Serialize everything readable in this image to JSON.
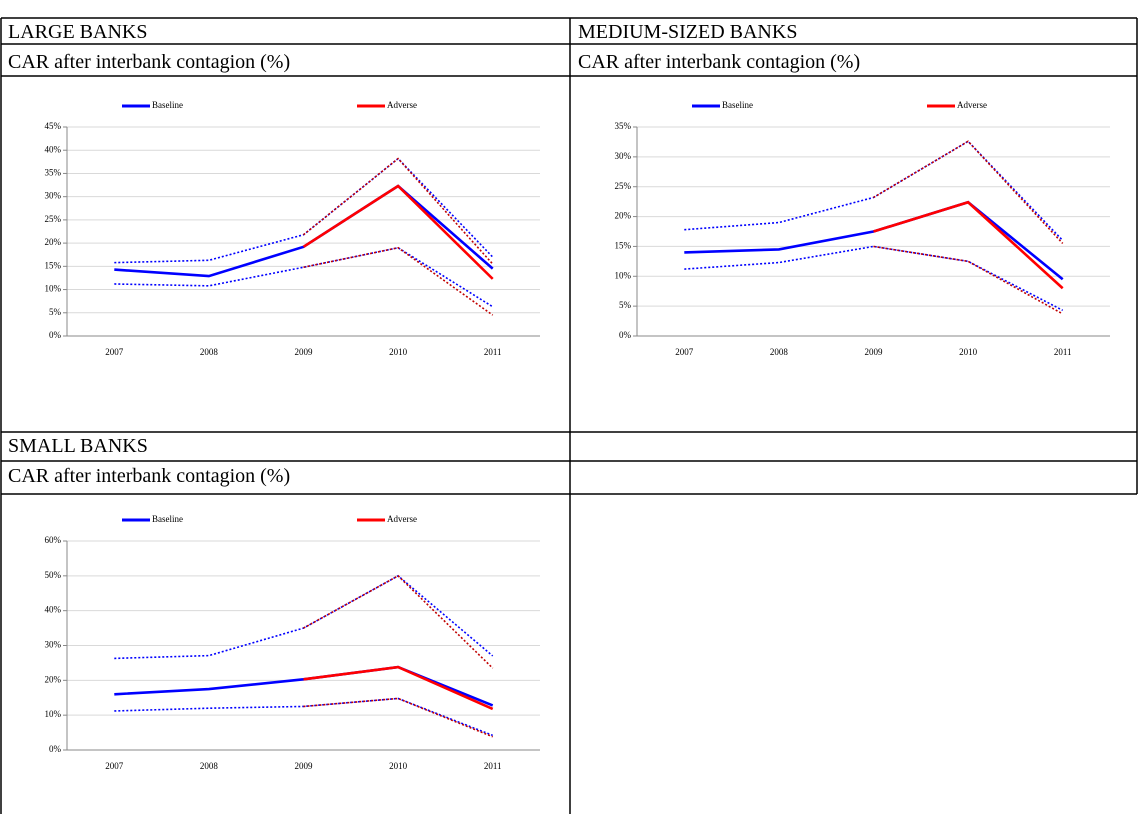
{
  "sections": [
    {
      "title": "LARGE BANKS",
      "subtitle": "CAR after interbank contagion (%)",
      "chart": {
        "type": "line",
        "categories": [
          "2007",
          "2008",
          "2009",
          "2010",
          "2011"
        ],
        "ylim": [
          0,
          45
        ],
        "yticks": [
          {
            "value": 0,
            "label": "0%"
          },
          {
            "value": 5,
            "label": "5%"
          },
          {
            "value": 10,
            "label": "10%"
          },
          {
            "value": 15,
            "label": "15%"
          },
          {
            "value": 20,
            "label": "20%"
          },
          {
            "value": 25,
            "label": "25%"
          },
          {
            "value": 30,
            "label": "30%"
          },
          {
            "value": 35,
            "label": "35%"
          },
          {
            "value": 40,
            "label": "40%"
          },
          {
            "value": 45,
            "label": "45%"
          }
        ],
        "grid": true,
        "legend": "top",
        "series": [
          {
            "name": "Baseline",
            "color": "#0000ff",
            "values": [
              14.3,
              12.9,
              19.2,
              32.3,
              14.5
            ]
          },
          {
            "name": "Adverse",
            "color": "#ff0000",
            "values": [
              null,
              null,
              19.2,
              32.3,
              12.3
            ]
          },
          {
            "color": "#0000ff",
            "style": "dotted",
            "values": [
              15.8,
              16.3,
              21.8,
              38.2,
              17.0
            ]
          },
          {
            "color": "#c00000",
            "style": "dotted",
            "values": [
              null,
              null,
              21.8,
              38.2,
              15.5
            ]
          },
          {
            "color": "#0000ff",
            "style": "dotted",
            "values": [
              11.2,
              10.8,
              14.8,
              19.0,
              6.3
            ]
          },
          {
            "color": "#c00000",
            "style": "dotted",
            "values": [
              null,
              null,
              14.8,
              19.0,
              4.5
            ]
          }
        ]
      }
    },
    {
      "title": "MEDIUM-SIZED BANKS",
      "subtitle": "CAR after interbank contagion (%)",
      "chart": {
        "type": "line",
        "categories": [
          "2007",
          "2008",
          "2009",
          "2010",
          "2011"
        ],
        "ylim": [
          0,
          35
        ],
        "yticks": [
          {
            "value": 0,
            "label": "0%"
          },
          {
            "value": 5,
            "label": "5%"
          },
          {
            "value": 10,
            "label": "10%"
          },
          {
            "value": 15,
            "label": "15%"
          },
          {
            "value": 20,
            "label": "20%"
          },
          {
            "value": 25,
            "label": "25%"
          },
          {
            "value": 30,
            "label": "30%"
          },
          {
            "value": 35,
            "label": "35%"
          }
        ],
        "grid": true,
        "legend": "top",
        "series": [
          {
            "name": "Baseline",
            "color": "#0000ff",
            "values": [
              14.0,
              14.5,
              17.5,
              22.4,
              9.5
            ]
          },
          {
            "name": "Adverse",
            "color": "#ff0000",
            "values": [
              null,
              null,
              17.5,
              22.4,
              8.0
            ]
          },
          {
            "color": "#0000ff",
            "style": "dotted",
            "values": [
              17.8,
              19.0,
              23.2,
              32.6,
              16.0
            ]
          },
          {
            "color": "#c00000",
            "style": "dotted",
            "values": [
              null,
              null,
              23.2,
              32.6,
              15.5
            ]
          },
          {
            "color": "#0000ff",
            "style": "dotted",
            "values": [
              11.2,
              12.3,
              15.0,
              12.5,
              4.3
            ]
          },
          {
            "color": "#c00000",
            "style": "dotted",
            "values": [
              null,
              null,
              15.0,
              12.5,
              3.7
            ]
          }
        ]
      }
    },
    {
      "title": "SMALL BANKS",
      "subtitle": "CAR after interbank contagion (%)",
      "chart": {
        "type": "line",
        "categories": [
          "2007",
          "2008",
          "2009",
          "2010",
          "2011"
        ],
        "ylim": [
          0,
          60
        ],
        "yticks": [
          {
            "value": 0,
            "label": "0%"
          },
          {
            "value": 10,
            "label": "10%"
          },
          {
            "value": 20,
            "label": "20%"
          },
          {
            "value": 30,
            "label": "30%"
          },
          {
            "value": 40,
            "label": "40%"
          },
          {
            "value": 50,
            "label": "50%"
          },
          {
            "value": 60,
            "label": "60%"
          }
        ],
        "grid": true,
        "legend": "top",
        "series": [
          {
            "name": "Baseline",
            "color": "#0000ff",
            "values": [
              16.0,
              17.5,
              20.3,
              23.8,
              12.8
            ]
          },
          {
            "name": "Adverse",
            "color": "#ff0000",
            "values": [
              null,
              null,
              20.3,
              23.8,
              11.8
            ]
          },
          {
            "color": "#0000ff",
            "style": "dotted",
            "values": [
              26.3,
              27.1,
              35.0,
              50.0,
              27.0
            ]
          },
          {
            "color": "#c00000",
            "style": "dotted",
            "values": [
              null,
              null,
              35.0,
              50.0,
              23.5
            ]
          },
          {
            "color": "#0000ff",
            "style": "dotted",
            "values": [
              11.2,
              12.0,
              12.5,
              14.8,
              4.2
            ]
          },
          {
            "color": "#c00000",
            "style": "dotted",
            "values": [
              null,
              null,
              12.5,
              14.8,
              3.8
            ]
          }
        ]
      }
    }
  ]
}
